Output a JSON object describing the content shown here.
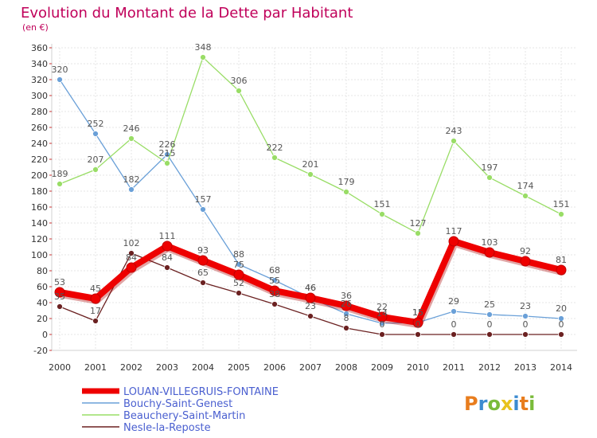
{
  "chart_data": {
    "type": "line",
    "title": "Evolution du Montant de la Dette par Habitant",
    "subtitle": "(en €)",
    "x": [
      "2000",
      "2001",
      "2002",
      "2003",
      "2004",
      "2005",
      "2006",
      "2007",
      "2008",
      "2009",
      "2010",
      "2011",
      "2012",
      "2013",
      "2014"
    ],
    "ylim": [
      -20,
      360
    ],
    "ytick_step": 20,
    "grid": true,
    "legend_position": "bottom-left",
    "series": [
      {
        "name": "LOUAN-VILLEGRUIS-FONTAINE",
        "color": "#ee0000",
        "emphasis": true,
        "values": [
          53,
          45,
          84,
          111,
          93,
          75,
          55,
          46,
          36,
          22,
          15,
          117,
          103,
          92,
          81
        ],
        "labels": [
          "53",
          "45",
          "84",
          "111",
          "93",
          "75",
          "55",
          "46",
          "36",
          "22",
          "15",
          "117",
          "103",
          "92",
          "81"
        ]
      },
      {
        "name": "Bouchy-Saint-Genest",
        "color": "#6aa0d8",
        "values": [
          320,
          252,
          182,
          226,
          157,
          88,
          68,
          46,
          26,
          14,
          15,
          29,
          25,
          23,
          20
        ],
        "labels": [
          "320",
          "252",
          "182",
          "226",
          "157",
          "88",
          "68",
          "46",
          "26",
          "14",
          "15",
          "29",
          "25",
          "23",
          "20"
        ]
      },
      {
        "name": "Beauchery-Saint-Martin",
        "color": "#99dd66",
        "values": [
          189,
          207,
          246,
          215,
          348,
          306,
          222,
          201,
          179,
          151,
          127,
          243,
          197,
          174,
          151
        ],
        "labels": [
          "189",
          "207",
          "246",
          "215",
          "348",
          "306",
          "222",
          "201",
          "179",
          "151",
          "127",
          "243",
          "197",
          "174",
          "151"
        ]
      },
      {
        "name": "Nesle-la-Reposte",
        "color": "#6b2121",
        "values": [
          35,
          17,
          102,
          84,
          65,
          52,
          38,
          23,
          8,
          0,
          0,
          0,
          0,
          0,
          0
        ],
        "labels": [
          "35",
          "17",
          "102",
          "84",
          "65",
          "52",
          "38",
          "23",
          "8",
          "0",
          "0",
          "0",
          "0",
          "0",
          "0"
        ]
      }
    ]
  },
  "logo": {
    "text": "Proxiti"
  }
}
